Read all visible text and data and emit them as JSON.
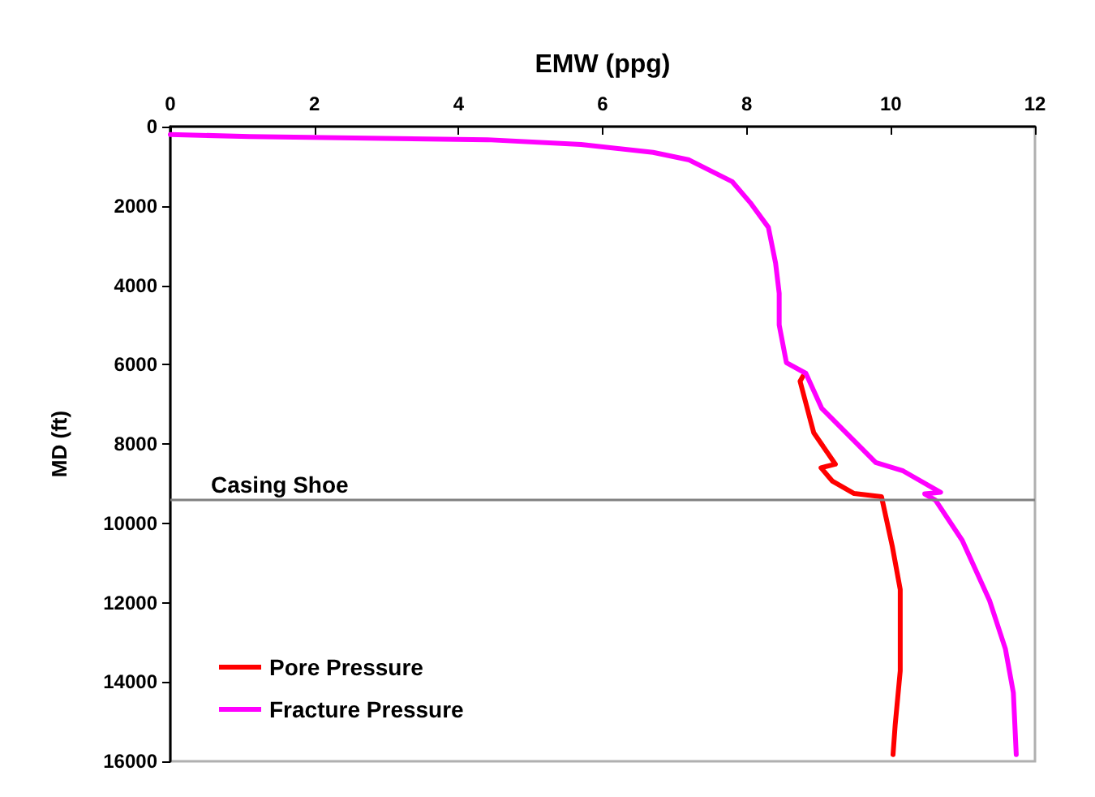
{
  "chart_data": {
    "type": "line",
    "xlabel": "EMW (ppg)",
    "ylabel": "MD (ft)",
    "xlim": [
      0,
      12
    ],
    "xticks": [
      0,
      2,
      4,
      6,
      8,
      10,
      12
    ],
    "ylim": [
      16000,
      0
    ],
    "yticks": [
      0,
      2000,
      4000,
      6000,
      8000,
      10000,
      12000,
      14000,
      16000
    ],
    "grid": false,
    "legend": "bottom left",
    "marker": "none",
    "line_style": "solid",
    "ref_lines": [
      {
        "axis": "y",
        "value": 9400,
        "label": "Casing Shoe",
        "color": "#808080"
      }
    ],
    "series": [
      {
        "name": "Pore Pressure",
        "color": "#ff0000",
        "x": [
          8.78,
          8.74,
          8.89,
          8.93,
          9.23,
          9.03,
          9.19,
          9.49,
          9.87,
          10.02,
          10.13,
          10.13,
          10.06,
          10.03
        ],
        "values": [
          6290,
          6420,
          7450,
          7720,
          8510,
          8600,
          8940,
          9250,
          9330,
          10580,
          11670,
          13720,
          15080,
          15830
        ]
      },
      {
        "name": "Fracture Pressure",
        "color": "#ff00ff",
        "x": [
          0,
          1.1,
          4.4,
          5.7,
          6.7,
          7.2,
          7.8,
          8.05,
          8.3,
          8.4,
          8.45,
          8.45,
          8.55,
          8.82,
          9.04,
          9.79,
          10.17,
          10.62,
          10.69,
          10.47,
          10.62,
          10.99,
          11.37,
          11.59,
          11.7,
          11.74
        ],
        "values": [
          200,
          250,
          330,
          450,
          650,
          840,
          1390,
          1920,
          2540,
          3440,
          4200,
          5000,
          5950,
          6220,
          7100,
          8470,
          8680,
          9150,
          9220,
          9260,
          9420,
          10430,
          11950,
          13170,
          14270,
          15830
        ]
      }
    ]
  }
}
